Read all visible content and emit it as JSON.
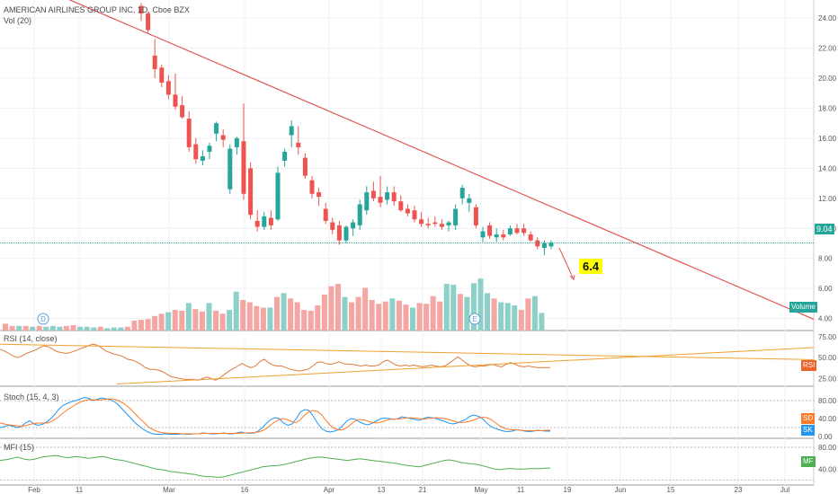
{
  "chart_data": {
    "type": "candlestick",
    "title": "AMERICAN AIRLINES GROUP INC, 1D, Cboe BZX",
    "current_price_label": "9.04",
    "annotation": "6.4",
    "volume_label": "Volume",
    "volume_legend": "Vol (20)",
    "price_ticks": [
      "24.00",
      "22.00",
      "20.00",
      "18.00",
      "16.00",
      "14.00",
      "12.00",
      "10.00",
      "8.00",
      "6.00",
      "4.00"
    ],
    "price_ylim": [
      3.2,
      25.2
    ],
    "date_ticks": [
      "Feb",
      "11",
      "Mar",
      "16",
      "Apr",
      "13",
      "21",
      "May",
      "11",
      "19",
      "Jun",
      "15",
      "23",
      "Jul"
    ],
    "event_markers": [
      "D",
      "E"
    ],
    "candles": [
      {
        "o": 24.8,
        "h": 25.0,
        "l": 23.8,
        "c": 24.3
      },
      {
        "o": 24.3,
        "h": 24.4,
        "l": 23.0,
        "c": 23.2
      },
      {
        "o": 21.5,
        "h": 22.6,
        "l": 20.0,
        "c": 20.6
      },
      {
        "o": 20.7,
        "h": 20.9,
        "l": 19.4,
        "c": 19.7
      },
      {
        "o": 19.8,
        "h": 20.2,
        "l": 18.6,
        "c": 18.9
      },
      {
        "o": 18.9,
        "h": 20.3,
        "l": 17.9,
        "c": 18.1
      },
      {
        "o": 18.2,
        "h": 18.8,
        "l": 17.3,
        "c": 17.4
      },
      {
        "o": 17.3,
        "h": 17.8,
        "l": 15.1,
        "c": 15.4
      },
      {
        "o": 15.6,
        "h": 16.0,
        "l": 14.3,
        "c": 14.6
      },
      {
        "o": 14.5,
        "h": 15.2,
        "l": 14.2,
        "c": 14.8
      },
      {
        "o": 15.1,
        "h": 15.7,
        "l": 14.6,
        "c": 15.5
      },
      {
        "o": 16.3,
        "h": 17.1,
        "l": 15.8,
        "c": 17.0
      },
      {
        "o": 16.2,
        "h": 16.6,
        "l": 15.4,
        "c": 15.9
      },
      {
        "o": 12.6,
        "h": 15.6,
        "l": 12.3,
        "c": 15.3
      },
      {
        "o": 15.4,
        "h": 16.1,
        "l": 14.9,
        "c": 16.0
      },
      {
        "o": 15.8,
        "h": 18.3,
        "l": 11.9,
        "c": 12.3
      },
      {
        "o": 14.0,
        "h": 14.4,
        "l": 10.6,
        "c": 10.9
      },
      {
        "o": 10.5,
        "h": 11.2,
        "l": 9.8,
        "c": 10.1
      },
      {
        "o": 10.1,
        "h": 11.1,
        "l": 9.9,
        "c": 10.8
      },
      {
        "o": 10.7,
        "h": 11.2,
        "l": 9.9,
        "c": 10.2
      },
      {
        "o": 10.6,
        "h": 14.1,
        "l": 10.5,
        "c": 13.7
      },
      {
        "o": 14.5,
        "h": 15.3,
        "l": 14.1,
        "c": 15.1
      },
      {
        "o": 16.2,
        "h": 17.2,
        "l": 15.4,
        "c": 16.8
      },
      {
        "o": 15.7,
        "h": 16.8,
        "l": 14.9,
        "c": 15.4
      },
      {
        "o": 14.7,
        "h": 15.0,
        "l": 13.3,
        "c": 13.5
      },
      {
        "o": 13.2,
        "h": 13.5,
        "l": 12.0,
        "c": 12.3
      },
      {
        "o": 12.4,
        "h": 12.7,
        "l": 11.5,
        "c": 12.1
      },
      {
        "o": 11.3,
        "h": 11.7,
        "l": 10.3,
        "c": 10.5
      },
      {
        "o": 10.4,
        "h": 10.7,
        "l": 9.6,
        "c": 9.9
      },
      {
        "o": 10.2,
        "h": 10.5,
        "l": 8.9,
        "c": 9.2
      },
      {
        "o": 9.2,
        "h": 10.2,
        "l": 9.0,
        "c": 10.1
      },
      {
        "o": 10.0,
        "h": 10.6,
        "l": 9.5,
        "c": 10.4
      },
      {
        "o": 10.2,
        "h": 11.9,
        "l": 9.9,
        "c": 11.6
      },
      {
        "o": 11.2,
        "h": 12.8,
        "l": 10.9,
        "c": 12.4
      },
      {
        "o": 12.5,
        "h": 13.1,
        "l": 11.8,
        "c": 12.0
      },
      {
        "o": 12.1,
        "h": 13.5,
        "l": 11.4,
        "c": 11.7
      },
      {
        "o": 11.9,
        "h": 12.8,
        "l": 11.6,
        "c": 12.4
      },
      {
        "o": 12.4,
        "h": 12.8,
        "l": 11.5,
        "c": 11.8
      },
      {
        "o": 11.8,
        "h": 12.2,
        "l": 11.1,
        "c": 11.2
      },
      {
        "o": 11.3,
        "h": 11.6,
        "l": 10.8,
        "c": 11.0
      },
      {
        "o": 11.2,
        "h": 11.5,
        "l": 10.4,
        "c": 10.6
      },
      {
        "o": 10.6,
        "h": 11.1,
        "l": 10.1,
        "c": 10.3
      },
      {
        "o": 10.3,
        "h": 10.7,
        "l": 10.0,
        "c": 10.2
      },
      {
        "o": 10.4,
        "h": 10.8,
        "l": 10.1,
        "c": 10.3
      },
      {
        "o": 10.3,
        "h": 10.6,
        "l": 9.9,
        "c": 10.1
      },
      {
        "o": 10.2,
        "h": 10.5,
        "l": 9.8,
        "c": 10.4
      },
      {
        "o": 10.2,
        "h": 11.6,
        "l": 9.9,
        "c": 11.3
      },
      {
        "o": 12.0,
        "h": 12.9,
        "l": 11.6,
        "c": 12.7
      },
      {
        "o": 11.7,
        "h": 12.3,
        "l": 11.1,
        "c": 12.0
      },
      {
        "o": 11.4,
        "h": 11.6,
        "l": 10.0,
        "c": 10.2
      },
      {
        "o": 9.4,
        "h": 10.1,
        "l": 9.1,
        "c": 9.8
      },
      {
        "o": 10.2,
        "h": 10.4,
        "l": 9.3,
        "c": 9.5
      },
      {
        "o": 9.4,
        "h": 10.0,
        "l": 9.1,
        "c": 9.6
      },
      {
        "o": 9.6,
        "h": 9.9,
        "l": 9.2,
        "c": 9.4
      },
      {
        "o": 9.6,
        "h": 10.2,
        "l": 9.5,
        "c": 10.0
      },
      {
        "o": 10.0,
        "h": 10.3,
        "l": 9.6,
        "c": 9.7
      },
      {
        "o": 10.0,
        "h": 10.3,
        "l": 9.5,
        "c": 9.7
      },
      {
        "o": 9.6,
        "h": 9.8,
        "l": 9.1,
        "c": 9.2
      },
      {
        "o": 9.2,
        "h": 9.4,
        "l": 8.6,
        "c": 8.8
      },
      {
        "o": 8.7,
        "h": 9.2,
        "l": 8.2,
        "c": 9.0
      },
      {
        "o": 8.8,
        "h": 9.2,
        "l": 8.6,
        "c": 9.04
      }
    ],
    "volume": [
      {
        "v": 0.9,
        "up": false
      },
      {
        "v": 0.6,
        "up": false
      },
      {
        "v": 0.6,
        "up": true
      },
      {
        "v": 0.6,
        "up": false
      },
      {
        "v": 0.5,
        "up": true
      },
      {
        "v": 0.6,
        "up": false
      },
      {
        "v": 0.5,
        "up": true
      },
      {
        "v": 0.6,
        "up": true
      },
      {
        "v": 0.5,
        "up": true
      },
      {
        "v": 0.6,
        "up": false
      },
      {
        "v": 0.7,
        "up": false
      },
      {
        "v": 0.5,
        "up": true
      },
      {
        "v": 0.5,
        "up": true
      },
      {
        "v": 0.4,
        "up": true
      },
      {
        "v": 0.5,
        "up": false
      },
      {
        "v": 0.3,
        "up": true
      },
      {
        "v": 0.4,
        "up": true
      },
      {
        "v": 0.4,
        "up": true
      },
      {
        "v": 0.5,
        "up": false
      },
      {
        "v": 1.3,
        "up": false
      },
      {
        "v": 1.4,
        "up": false
      },
      {
        "v": 1.5,
        "up": false
      },
      {
        "v": 1.9,
        "up": false
      },
      {
        "v": 2.2,
        "up": false
      },
      {
        "v": 2.4,
        "up": true
      },
      {
        "v": 2.7,
        "up": false
      },
      {
        "v": 2.6,
        "up": false
      },
      {
        "v": 3.6,
        "up": true
      },
      {
        "v": 2.8,
        "up": false
      },
      {
        "v": 2.5,
        "up": false
      },
      {
        "v": 3.6,
        "up": true
      },
      {
        "v": 2.6,
        "up": false
      },
      {
        "v": 2.2,
        "up": false
      },
      {
        "v": 2.7,
        "up": true
      },
      {
        "v": 5.1,
        "up": true
      },
      {
        "v": 4.0,
        "up": false
      },
      {
        "v": 3.7,
        "up": false
      },
      {
        "v": 3.2,
        "up": false
      },
      {
        "v": 3.0,
        "up": false
      },
      {
        "v": 3.0,
        "up": true
      },
      {
        "v": 4.4,
        "up": false
      },
      {
        "v": 4.9,
        "up": true
      },
      {
        "v": 4.2,
        "up": false
      },
      {
        "v": 3.7,
        "up": false
      },
      {
        "v": 2.7,
        "up": false
      },
      {
        "v": 2.6,
        "up": false
      },
      {
        "v": 3.3,
        "up": false
      },
      {
        "v": 4.7,
        "up": false
      },
      {
        "v": 5.8,
        "up": false
      },
      {
        "v": 6.1,
        "up": false
      },
      {
        "v": 4.4,
        "up": true
      },
      {
        "v": 3.7,
        "up": false
      },
      {
        "v": 4.4,
        "up": false
      },
      {
        "v": 5.6,
        "up": false
      },
      {
        "v": 4.0,
        "up": false
      },
      {
        "v": 3.5,
        "up": false
      },
      {
        "v": 3.8,
        "up": false
      },
      {
        "v": 4.2,
        "up": true
      },
      {
        "v": 3.9,
        "up": false
      },
      {
        "v": 3.4,
        "up": false
      },
      {
        "v": 3.0,
        "up": true
      },
      {
        "v": 3.6,
        "up": false
      },
      {
        "v": 3.5,
        "up": false
      },
      {
        "v": 4.5,
        "up": false
      },
      {
        "v": 3.8,
        "up": false
      },
      {
        "v": 6.1,
        "up": true
      },
      {
        "v": 6.0,
        "up": true
      },
      {
        "v": 4.8,
        "up": false
      },
      {
        "v": 4.4,
        "up": true
      },
      {
        "v": 6.2,
        "up": true
      },
      {
        "v": 6.8,
        "up": true
      },
      {
        "v": 4.9,
        "up": true
      },
      {
        "v": 4.2,
        "up": false
      },
      {
        "v": 3.7,
        "up": true
      },
      {
        "v": 3.6,
        "up": true
      },
      {
        "v": 3.3,
        "up": true
      },
      {
        "v": 2.7,
        "up": false
      },
      {
        "v": 4.2,
        "up": false
      },
      {
        "v": 4.5,
        "up": true
      },
      {
        "v": 2.3,
        "up": true
      }
    ],
    "trendlines": [
      {
        "from": {
          "date": "Jan 1",
          "price": 27.2
        },
        "to": {
          "date": "Jul 8",
          "price": 4.2
        },
        "color": "#e15656"
      },
      {
        "from": {
          "date": "May 18",
          "price": 8.7
        },
        "to": {
          "date": "Jun 1",
          "price": 6.6
        },
        "color": "#e15656"
      }
    ],
    "rsi": {
      "legend": "RSI (14, close)",
      "ticks": [
        "75.00",
        "50.00",
        "25.00"
      ],
      "ylim": [
        18,
        78
      ],
      "current_label": "RSI",
      "values": [
        60,
        58,
        55,
        52,
        50,
        52,
        55,
        57,
        59,
        62,
        64,
        63,
        60,
        57,
        56,
        55,
        56,
        58,
        60,
        62,
        64,
        66,
        65,
        62,
        58,
        56,
        54,
        53,
        51,
        48,
        47,
        45,
        42,
        38,
        36,
        36,
        35,
        33,
        30,
        27,
        26,
        25,
        24,
        24,
        24,
        23,
        25,
        27,
        25,
        23,
        26,
        30,
        34,
        37,
        40,
        43,
        40,
        38,
        40,
        45,
        48,
        44,
        41,
        40,
        40,
        38,
        36,
        35,
        34,
        35,
        36,
        40,
        44,
        45,
        43,
        42,
        43,
        45,
        43,
        42,
        42,
        41,
        40,
        41,
        40,
        40,
        41,
        45,
        47,
        44,
        41,
        40,
        41,
        40,
        41,
        40,
        39,
        40,
        41,
        40,
        39,
        40,
        43,
        47,
        51,
        47,
        43,
        40,
        39,
        40,
        40,
        41,
        42,
        40,
        39,
        42,
        44,
        42,
        40,
        39,
        40,
        39,
        38,
        38,
        38,
        38
      ],
      "trendlines": [
        {
          "from": {
            "idx": 0,
            "value": 66
          },
          "to": {
            "idx": "end",
            "value": 47.5
          },
          "color": "#f0a030"
        },
        {
          "from": {
            "idx": 30,
            "value": 25
          },
          "to": {
            "idx": "end",
            "value": 62
          },
          "color": "#f0a030"
        }
      ]
    },
    "stoch": {
      "legend": "Stoch (15, 4, 3)",
      "ticks": [
        "80.00",
        "40.00",
        "0.00"
      ],
      "ylim": [
        -4,
        100
      ],
      "labels": [
        "SD",
        "SK"
      ],
      "k": [
        20,
        22,
        25,
        23,
        20,
        22,
        30,
        35,
        28,
        25,
        27,
        32,
        40,
        50,
        62,
        70,
        74,
        78,
        80,
        84,
        87,
        85,
        80,
        83,
        86,
        84,
        82,
        78,
        70,
        60,
        50,
        40,
        30,
        22,
        15,
        10,
        6,
        5,
        5,
        6,
        5,
        5,
        5,
        6,
        5,
        5,
        6,
        6,
        8,
        7,
        6,
        6,
        7,
        8,
        6,
        6,
        8,
        10,
        8,
        7,
        8,
        12,
        20,
        30,
        38,
        42,
        40,
        30,
        25,
        28,
        40,
        55,
        60,
        58,
        45,
        30,
        18,
        12,
        10,
        12,
        15,
        25,
        35,
        40,
        38,
        32,
        28,
        26,
        30,
        35,
        40,
        41,
        40,
        38,
        40,
        44,
        42,
        40,
        38,
        36,
        40,
        43,
        42,
        40,
        37,
        34,
        30,
        28,
        30,
        34,
        38,
        45,
        48,
        45,
        40,
        30,
        22,
        18,
        15,
        12,
        11,
        12,
        15,
        14,
        12,
        11,
        12,
        14,
        13,
        12,
        12
      ],
      "d": [
        30,
        28,
        26,
        25,
        24,
        23,
        24,
        27,
        29,
        30,
        30,
        30,
        33,
        38,
        45,
        53,
        60,
        66,
        72,
        77,
        80,
        82,
        82,
        81,
        82,
        83,
        84,
        83,
        80,
        75,
        68,
        60,
        50,
        40,
        32,
        22,
        16,
        12,
        9,
        8,
        7,
        7,
        7,
        6,
        6,
        6,
        6,
        6,
        7,
        7,
        7,
        7,
        7,
        7,
        7,
        7,
        7,
        8,
        8,
        8,
        9,
        10,
        13,
        18,
        26,
        33,
        38,
        40,
        37,
        33,
        31,
        38,
        48,
        55,
        58,
        56,
        48,
        36,
        25,
        18,
        15,
        15,
        20,
        28,
        35,
        38,
        37,
        34,
        31,
        30,
        32,
        35,
        38,
        39,
        39,
        40,
        41,
        42,
        41,
        40,
        39,
        40,
        41,
        42,
        41,
        40,
        38,
        35,
        32,
        31,
        32,
        34,
        37,
        41,
        43,
        42,
        38,
        31,
        24,
        19,
        16,
        15,
        15,
        14,
        13,
        13,
        13,
        13,
        13,
        14,
        14
      ]
    },
    "mfi": {
      "legend": "MFI (15)",
      "ticks": [
        "80.00",
        "40.00"
      ],
      "ylim": [
        14,
        90
      ],
      "current_label": "MF",
      "values": [
        56,
        57,
        58,
        60,
        62,
        60,
        58,
        57,
        58,
        60,
        62,
        63,
        64,
        65,
        64,
        62,
        61,
        62,
        63,
        62,
        61,
        60,
        61,
        62,
        63,
        62,
        60,
        58,
        57,
        56,
        54,
        52,
        50,
        48,
        46,
        44,
        42,
        40,
        39,
        38,
        36,
        35,
        34,
        33,
        32,
        31,
        30,
        28,
        27,
        26,
        26,
        25,
        25,
        26,
        28,
        30,
        32,
        34,
        36,
        38,
        40,
        42,
        44,
        45,
        46,
        46,
        47,
        48,
        50,
        52,
        54,
        56,
        58,
        60,
        61,
        62,
        62,
        61,
        60,
        59,
        58,
        57,
        56,
        57,
        58,
        59,
        58,
        57,
        56,
        55,
        54,
        53,
        52,
        51,
        50,
        48,
        47,
        46,
        45,
        44,
        46,
        48,
        50,
        52,
        54,
        56,
        57,
        56,
        54,
        52,
        51,
        50,
        49,
        48,
        46,
        44,
        42,
        40,
        39,
        40,
        41,
        41,
        40,
        40,
        40,
        41,
        41,
        41,
        41,
        42,
        42
      ]
    },
    "colors": {
      "up": "#26a69a",
      "down": "#ef5350",
      "vol_up": "#8dd0c8",
      "vol_down": "#f4a6a3",
      "rsi": "#e07a3c",
      "stoch_k": "#2196f3",
      "stoch_d": "#ff7a26",
      "mfi": "#4caf50",
      "trend": "#e15656",
      "rsi_trend": "#f0a030",
      "price_line": "#26a69a"
    }
  }
}
